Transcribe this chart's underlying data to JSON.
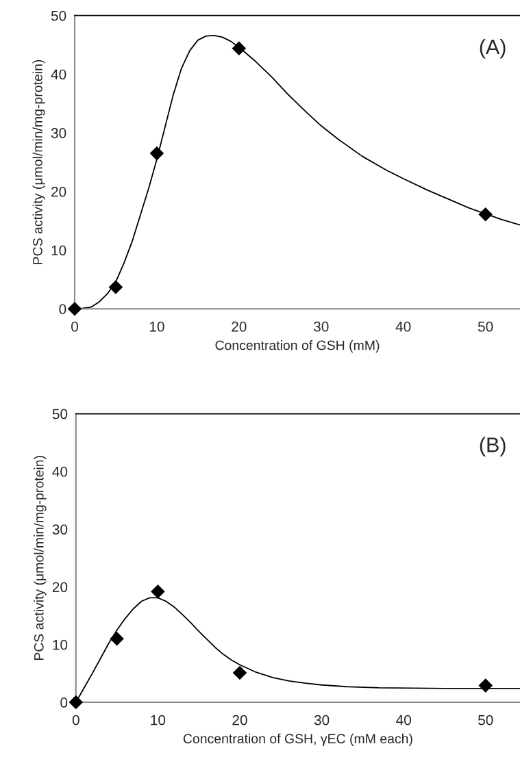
{
  "chart_data": [
    {
      "type": "scatter",
      "xlabel": "Concentration of GSH (mM)",
      "ylabel": "PCS activity (μmol/min/mg-protein)",
      "annotations": [
        "(A)"
      ],
      "xlim": [
        0,
        54.2
      ],
      "xticks": [
        0,
        10,
        20,
        30,
        40,
        50
      ],
      "ylim": [
        0,
        50
      ],
      "yticks": [
        0,
        10,
        20,
        30,
        40,
        50
      ],
      "grid": false,
      "legend": false,
      "series": [
        {
          "color": "#000000",
          "marker": "diamond",
          "x": [
            0,
            5,
            10,
            20,
            50
          ],
          "values": [
            0,
            3.7,
            26.5,
            44.4,
            16.1
          ]
        },
        {
          "type": "line",
          "color": "#000000",
          "marker": "none",
          "line_style": "solid",
          "x": [
            0,
            1,
            2,
            3,
            4,
            5,
            6,
            7,
            8,
            9,
            10,
            11,
            12,
            13,
            14,
            15,
            16,
            17,
            18,
            19,
            20,
            22,
            24,
            26,
            28,
            30,
            32,
            35,
            38,
            40,
            43,
            45,
            48,
            50,
            52,
            54.2
          ],
          "values": [
            0,
            0.1,
            0.3,
            1.2,
            2.6,
            4.6,
            7.8,
            11.5,
            16,
            20.5,
            25.5,
            31,
            36.5,
            41,
            44,
            45.8,
            46.5,
            46.6,
            46.3,
            45.6,
            44.6,
            42.2,
            39.5,
            36.5,
            33.8,
            31.2,
            29.0,
            26.0,
            23.6,
            22.2,
            20.2,
            19.0,
            17.2,
            16.2,
            15.2,
            14.3
          ]
        }
      ]
    },
    {
      "type": "scatter",
      "xlabel": "Concentration of GSH, γEC (mM each)",
      "ylabel": "PCS activity (μmol/min/mg-protein)",
      "annotations": [
        "(B)"
      ],
      "xlim": [
        0,
        54.2
      ],
      "xticks": [
        0,
        10,
        20,
        30,
        40,
        50
      ],
      "ylim": [
        0,
        50
      ],
      "yticks": [
        0,
        10,
        20,
        30,
        40,
        50
      ],
      "grid": false,
      "legend": false,
      "series": [
        {
          "color": "#000000",
          "marker": "diamond",
          "x": [
            0,
            5,
            10,
            20,
            50
          ],
          "values": [
            0,
            11.0,
            19.2,
            5.1,
            2.9
          ]
        },
        {
          "type": "line",
          "color": "#000000",
          "marker": "none",
          "line_style": "solid",
          "x": [
            0,
            1,
            2,
            3,
            4,
            5,
            6,
            7,
            8,
            9,
            10,
            11,
            12,
            13,
            14,
            15,
            16,
            17,
            18,
            19,
            20,
            22,
            24,
            26,
            28,
            30,
            33,
            37,
            45,
            54.2
          ],
          "values": [
            0,
            2.5,
            5,
            7.6,
            10.2,
            12.5,
            14.5,
            16.2,
            17.5,
            18.1,
            18.1,
            17.5,
            16.5,
            15.2,
            13.8,
            12.3,
            10.9,
            9.5,
            8.3,
            7.3,
            6.5,
            5.2,
            4.3,
            3.7,
            3.3,
            3.0,
            2.7,
            2.5,
            2.4,
            2.4
          ]
        }
      ]
    }
  ]
}
